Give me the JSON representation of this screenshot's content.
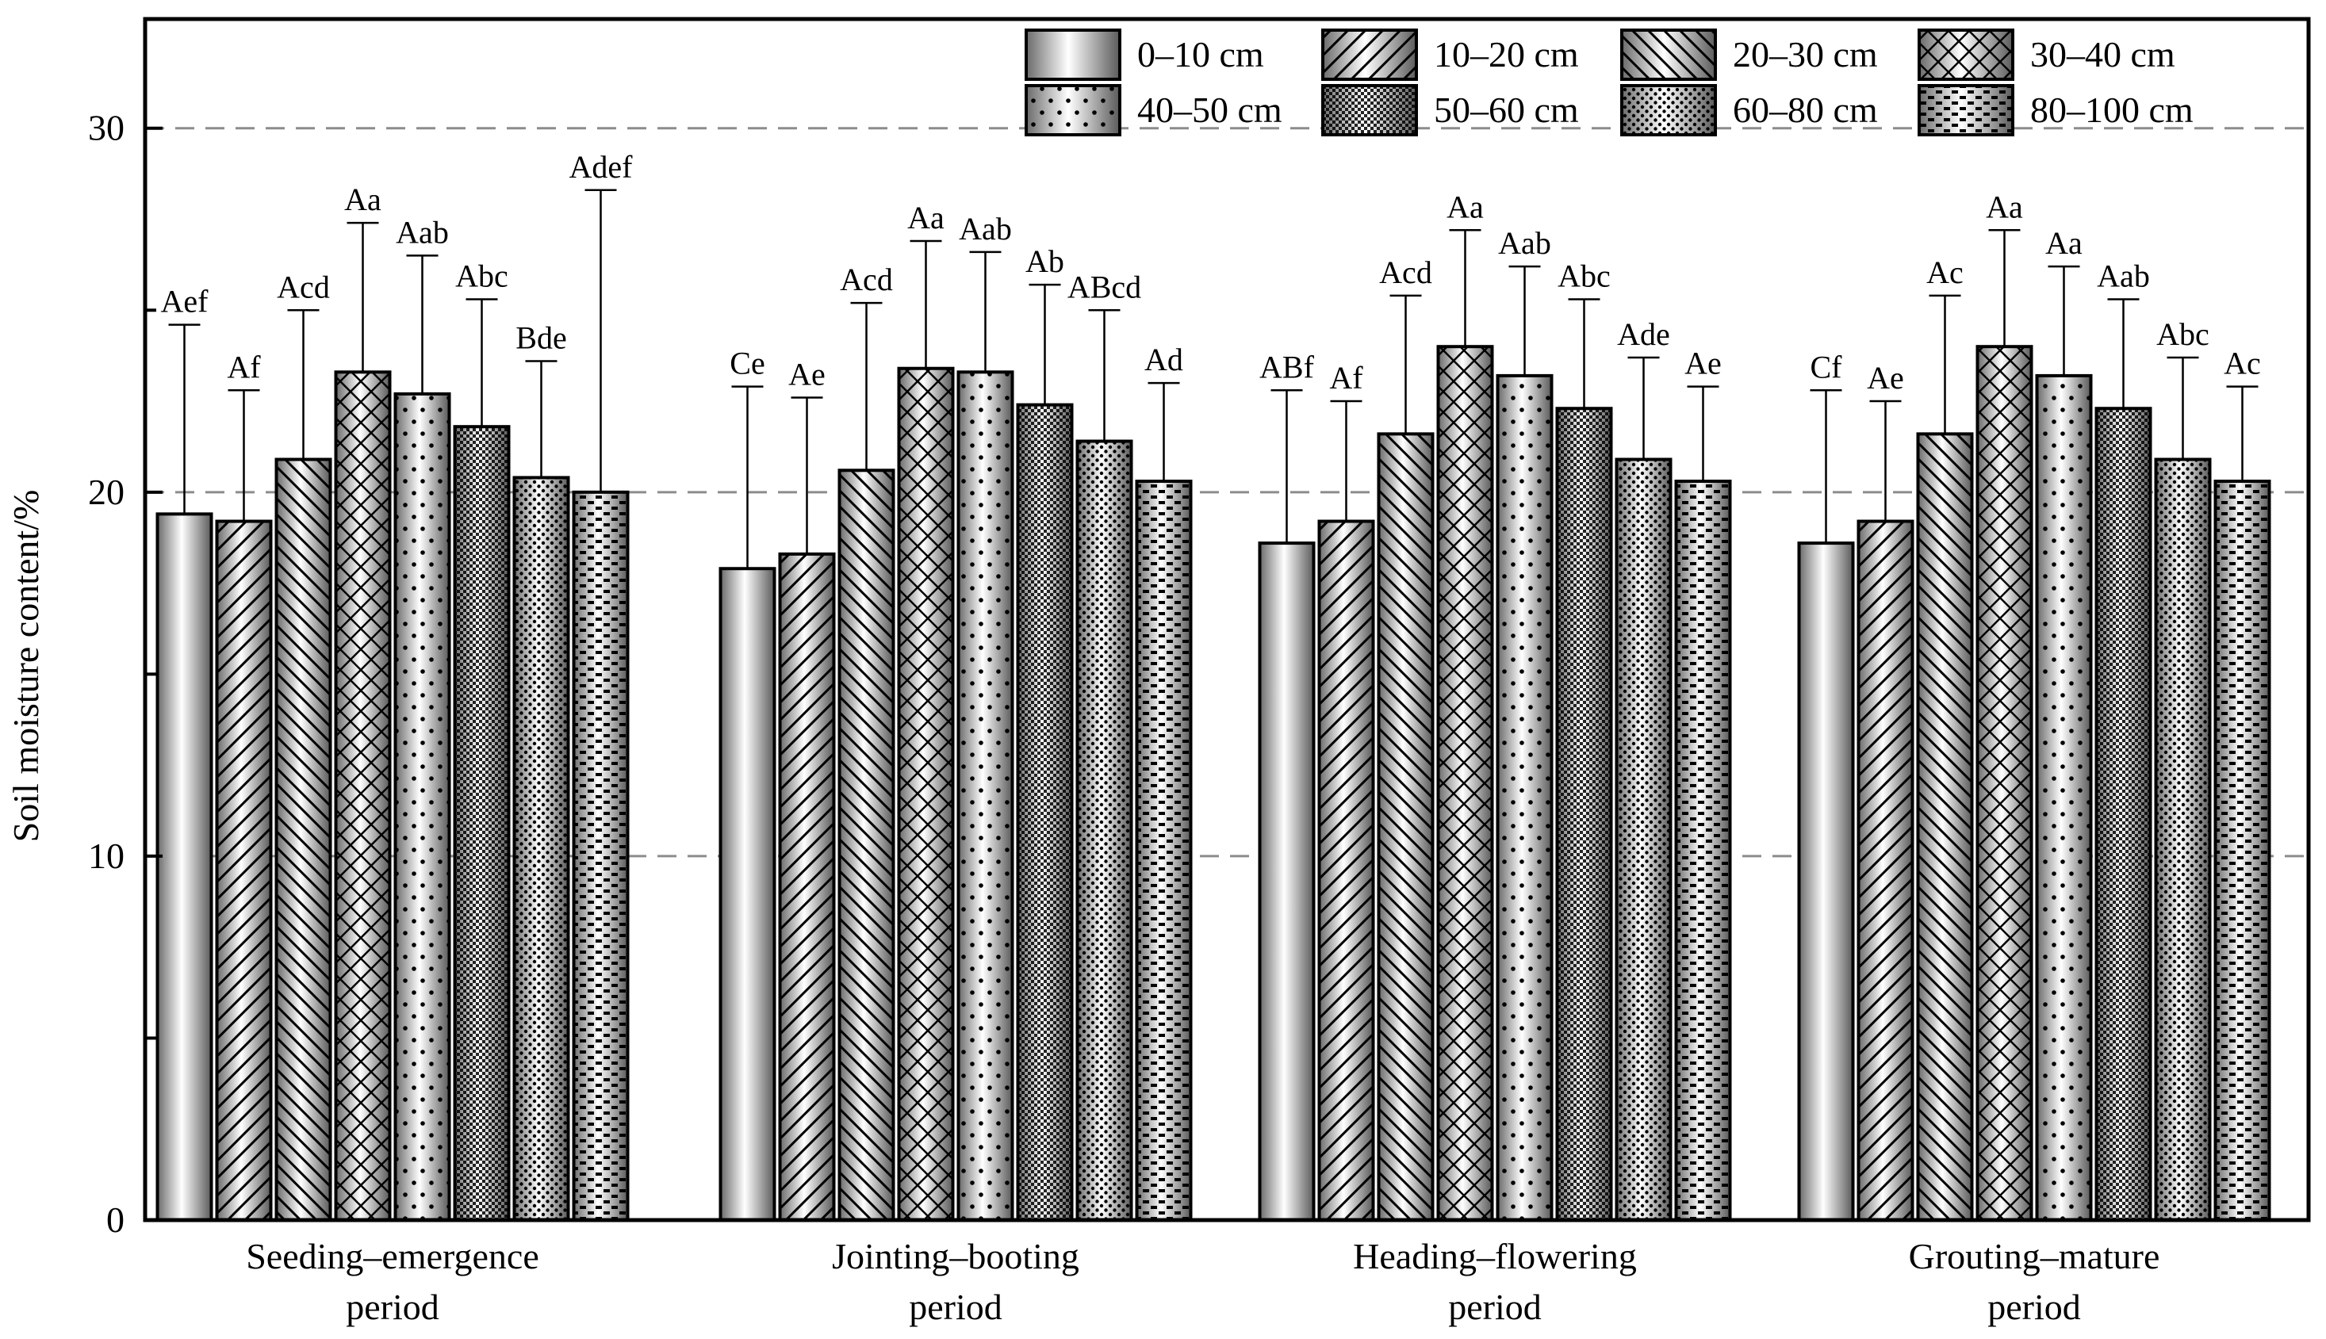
{
  "chart_data": {
    "type": "bar",
    "title": "",
    "xlabel": "",
    "ylabel": "Soil moisture content/%",
    "ylim": [
      0,
      33
    ],
    "yticks": [
      0,
      10,
      20,
      30
    ],
    "gridlines": [
      10,
      20,
      30
    ],
    "legend_position": "top-right",
    "categories": [
      [
        "Seeding–emergence",
        "period"
      ],
      [
        "Jointing–booting",
        "period"
      ],
      [
        "Heading–flowering",
        "period"
      ],
      [
        "Grouting–mature",
        "period"
      ]
    ],
    "series": [
      {
        "name": "0–10 cm",
        "pattern": "plain",
        "values": [
          19.4,
          17.9,
          18.6,
          18.6
        ],
        "errors": [
          5.2,
          5.0,
          4.2,
          4.2
        ],
        "labels": [
          "Aef",
          "Ce",
          "ABf",
          "Cf"
        ]
      },
      {
        "name": "10–20 cm",
        "pattern": "diag-fwd",
        "values": [
          19.2,
          18.3,
          19.2,
          19.2
        ],
        "errors": [
          3.6,
          4.3,
          3.3,
          3.3
        ],
        "labels": [
          "Af",
          "Ae",
          "Af",
          "Ae"
        ]
      },
      {
        "name": "20–30 cm",
        "pattern": "diag-back",
        "values": [
          20.9,
          20.6,
          21.6,
          21.6
        ],
        "errors": [
          4.1,
          4.6,
          3.8,
          3.8
        ],
        "labels": [
          "Acd",
          "Acd",
          "Acd",
          "Ac"
        ]
      },
      {
        "name": "30–40 cm",
        "pattern": "crosshatch",
        "values": [
          23.3,
          23.4,
          24.0,
          24.0
        ],
        "errors": [
          4.1,
          3.5,
          3.2,
          3.2
        ],
        "labels": [
          "Aa",
          "Aa",
          "Aa",
          "Aa"
        ]
      },
      {
        "name": "40–50 cm",
        "pattern": "dots-sparse",
        "values": [
          22.7,
          23.3,
          23.2,
          23.2
        ],
        "errors": [
          3.8,
          3.3,
          3.0,
          3.0
        ],
        "labels": [
          "Aab",
          "Aab",
          "Aab",
          "Aa"
        ]
      },
      {
        "name": "50–60 cm",
        "pattern": "checker",
        "values": [
          21.8,
          22.4,
          22.3,
          22.3
        ],
        "errors": [
          3.5,
          3.3,
          3.0,
          3.0
        ],
        "labels": [
          "Abc",
          "Ab",
          "Abc",
          "Aab"
        ]
      },
      {
        "name": "60–80 cm",
        "pattern": "dots-dense",
        "values": [
          20.4,
          21.4,
          20.9,
          20.9
        ],
        "errors": [
          3.2,
          3.6,
          2.8,
          2.8
        ],
        "labels": [
          "Bde",
          "ABcd",
          "Ade",
          "Abc"
        ]
      },
      {
        "name": "80–100 cm",
        "pattern": "dashes",
        "values": [
          20.0,
          20.3,
          20.3,
          20.3
        ],
        "errors": [
          8.3,
          2.7,
          2.6,
          2.6
        ],
        "labels": [
          "Adef",
          "Ad",
          "Ae",
          "Ac"
        ]
      }
    ]
  }
}
